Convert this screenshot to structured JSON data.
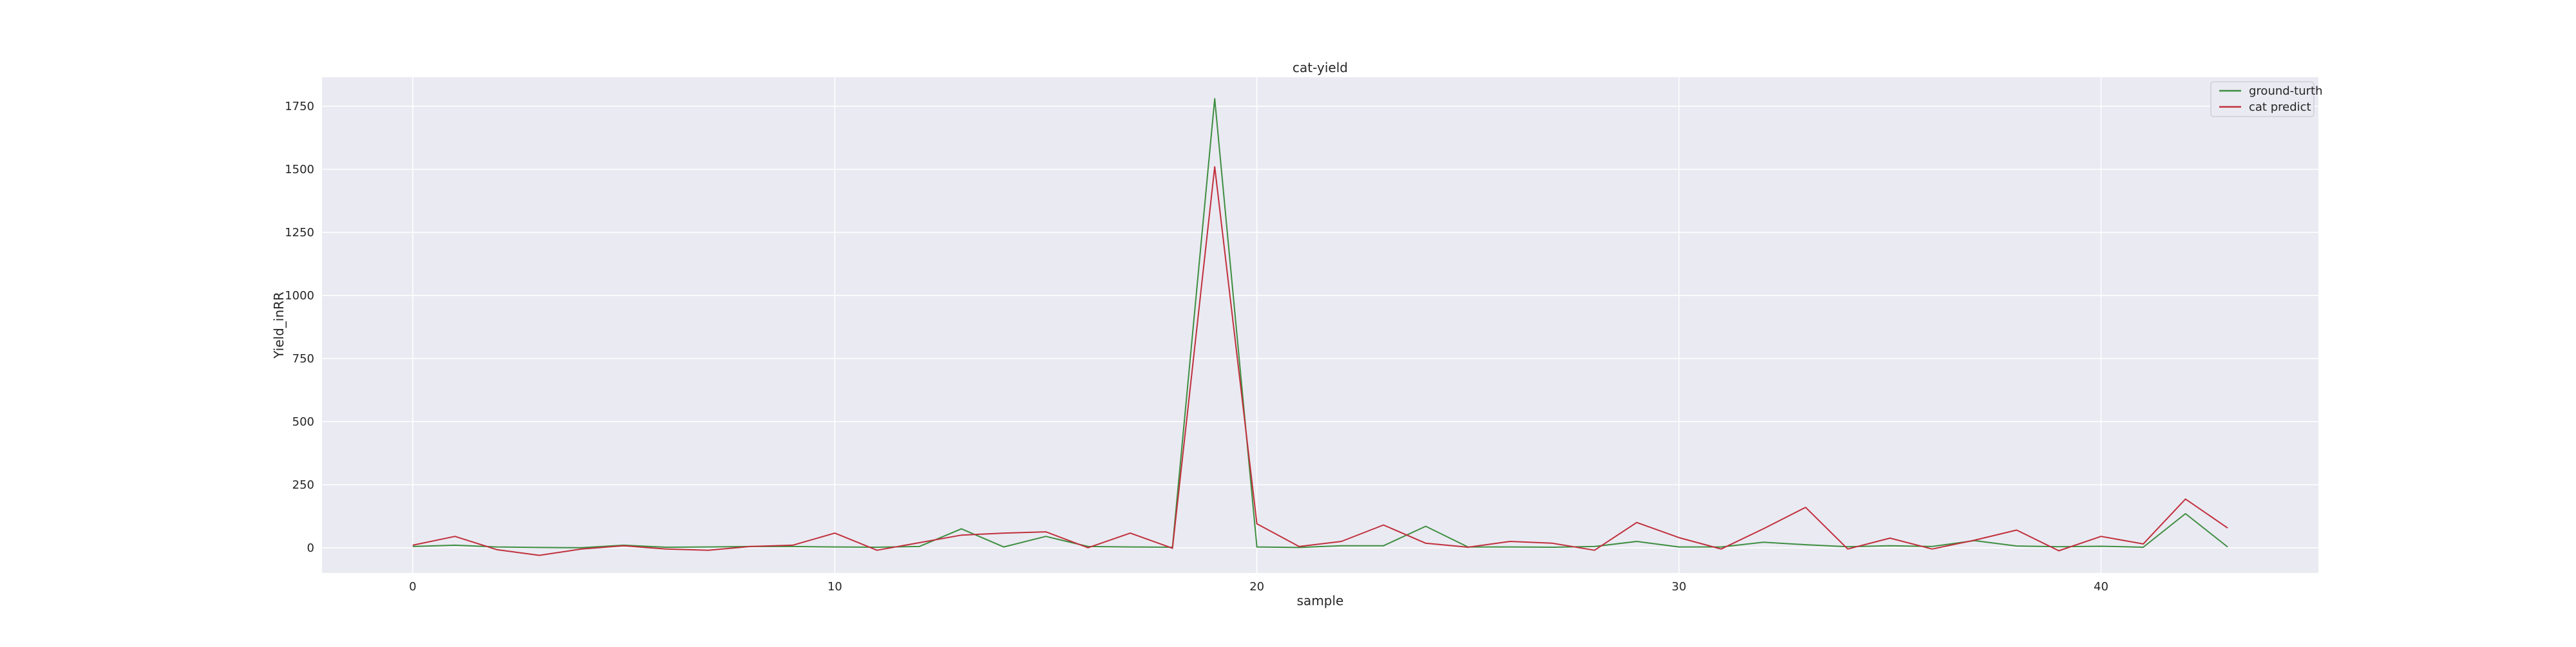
{
  "chart_data": {
    "type": "line",
    "title": "cat-yield",
    "xlabel": "sample",
    "ylabel": "Yield_inRR",
    "xlim": [
      -2.15,
      45.15
    ],
    "ylim": [
      -100,
      1865
    ],
    "xticks": [
      0,
      10,
      20,
      30,
      40
    ],
    "yticks": [
      0,
      250,
      500,
      750,
      1000,
      1250,
      1500,
      1750
    ],
    "grid": true,
    "background": "#EAEAF2",
    "legend_position": "top-right",
    "x": [
      0,
      1,
      2,
      3,
      4,
      5,
      6,
      7,
      8,
      9,
      10,
      11,
      12,
      13,
      14,
      15,
      16,
      17,
      18,
      19,
      20,
      21,
      22,
      23,
      24,
      25,
      26,
      27,
      28,
      29,
      30,
      31,
      32,
      33,
      34,
      35,
      36,
      37,
      38,
      39,
      40,
      41,
      42,
      43
    ],
    "series": [
      {
        "name": "ground-turth",
        "color": "#3E8E41",
        "values": [
          5,
          10,
          3,
          1,
          0,
          10,
          2,
          3,
          5,
          5,
          3,
          2,
          5,
          75,
          3,
          45,
          5,
          3,
          2,
          1780,
          3,
          1,
          8,
          8,
          85,
          3,
          3,
          2,
          5,
          25,
          3,
          3,
          22,
          12,
          4,
          8,
          5,
          28,
          7,
          4,
          6,
          2,
          135,
          3
        ]
      },
      {
        "name": "cat predict",
        "color": "#C0303C",
        "values": [
          10,
          45,
          -8,
          -30,
          -5,
          8,
          -5,
          -10,
          5,
          10,
          58,
          -10,
          20,
          50,
          58,
          63,
          0,
          58,
          -2,
          1510,
          95,
          5,
          25,
          90,
          18,
          2,
          25,
          18,
          -10,
          100,
          40,
          -5,
          75,
          160,
          -5,
          38,
          -5,
          30,
          70,
          -12,
          45,
          15,
          193,
          78
        ]
      }
    ]
  }
}
